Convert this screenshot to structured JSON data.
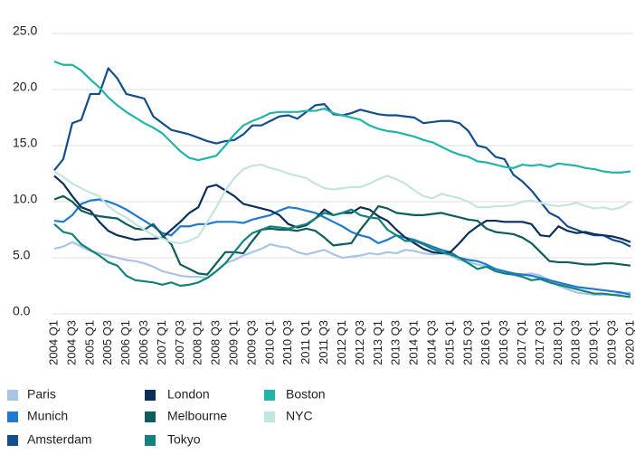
{
  "chart_data": {
    "type": "line",
    "categories": [
      "2004 Q1",
      null,
      "2004 Q3",
      null,
      "2005 Q1",
      null,
      "2005 Q3",
      null,
      "2006 Q1",
      null,
      "2006 Q3",
      null,
      "2007 Q1",
      null,
      "2007 Q3",
      null,
      "2008 Q1",
      null,
      "2008 Q3",
      null,
      "2009 Q1",
      null,
      "2009 Q3",
      null,
      "2010 Q1",
      null,
      "2010 Q3",
      null,
      "2011 Q1",
      null,
      "2011 Q3",
      null,
      "2012 Q1",
      null,
      "2012 Q3",
      null,
      "2013 Q1",
      null,
      "2013 Q3",
      null,
      "2014 Q1",
      null,
      "2014 Q3",
      null,
      "2015 Q1",
      null,
      "2015 Q3",
      null,
      "2016 Q1",
      null,
      "2016 Q3",
      null,
      "2017 Q1",
      null,
      "2017 Q3",
      null,
      "2018 Q1",
      null,
      "2018 Q3",
      null,
      "2019 Q1",
      null,
      "2019 Q3",
      null,
      "2020 Q1"
    ],
    "ylim": [
      0,
      25
    ],
    "yticks": [
      {
        "value": 0,
        "label": "0.0"
      },
      {
        "value": 5,
        "label": "5.0"
      },
      {
        "value": 10,
        "label": "10.0"
      },
      {
        "value": 15,
        "label": "15.0"
      },
      {
        "value": 20,
        "label": "20.0"
      },
      {
        "value": 25,
        "label": "25.0"
      }
    ],
    "grid": true,
    "legend": "bottom",
    "series": [
      {
        "name": "Paris",
        "color": "#a8c4e6",
        "values": [
          5.8,
          6.0,
          6.4,
          6.0,
          5.6,
          5.4,
          5.2,
          5.0,
          4.8,
          4.7,
          4.5,
          4.2,
          3.8,
          3.6,
          3.4,
          3.3,
          3.3,
          3.2,
          3.8,
          4.5,
          4.8,
          5.2,
          5.5,
          5.8,
          6.2,
          6.0,
          5.9,
          5.5,
          5.3,
          5.5,
          5.7,
          5.3,
          5.0,
          5.1,
          5.2,
          5.4,
          5.3,
          5.5,
          5.4,
          5.7,
          5.6,
          5.4,
          5.3,
          5.4,
          5.2,
          4.8,
          4.6,
          4.4,
          4.2,
          4.0,
          3.8,
          3.6,
          3.5,
          3.6,
          3.4,
          3.0,
          2.5,
          2.2,
          1.9,
          1.8,
          1.7,
          1.7,
          1.7,
          1.8,
          1.9
        ]
      },
      {
        "name": "Munich",
        "color": "#1f78d1",
        "values": [
          8.3,
          8.2,
          8.8,
          9.8,
          10.1,
          10.2,
          10.0,
          9.7,
          9.3,
          8.8,
          8.3,
          7.8,
          7.2,
          7.0,
          7.8,
          7.8,
          8.0,
          8.0,
          8.2,
          8.2,
          8.2,
          8.1,
          8.4,
          8.6,
          8.8,
          9.2,
          9.5,
          9.4,
          9.2,
          9.0,
          8.6,
          8.2,
          7.8,
          7.3,
          7.0,
          6.8,
          6.3,
          6.6,
          7.0,
          6.8,
          6.6,
          6.3,
          6.0,
          5.7,
          5.5,
          5.0,
          4.8,
          4.7,
          4.4,
          4.0,
          3.8,
          3.6,
          3.5,
          3.4,
          3.2,
          3.0,
          2.8,
          2.6,
          2.4,
          2.3,
          2.2,
          2.1,
          2.0,
          1.9,
          1.7
        ]
      },
      {
        "name": "Amsterdam",
        "color": "#134e8e",
        "values": [
          12.8,
          13.8,
          17.0,
          17.3,
          19.6,
          19.6,
          21.9,
          21.0,
          19.6,
          19.4,
          19.2,
          17.6,
          17.0,
          16.4,
          16.2,
          16.0,
          15.7,
          15.4,
          15.2,
          15.4,
          15.5,
          16.0,
          16.8,
          16.8,
          17.2,
          17.6,
          17.7,
          17.4,
          18.0,
          18.6,
          18.7,
          17.8,
          17.7,
          17.9,
          18.2,
          18.0,
          17.8,
          17.7,
          17.7,
          17.6,
          17.5,
          17.0,
          17.1,
          17.2,
          17.2,
          17.0,
          16.3,
          15.0,
          14.8,
          14.0,
          13.8,
          12.4,
          11.8,
          11.0,
          10.0,
          9.0,
          8.6,
          7.8,
          7.5,
          7.2,
          7.0,
          7.0,
          6.6,
          6.4,
          6.0
        ]
      },
      {
        "name": "London",
        "color": "#0b2f5b",
        "values": [
          12.3,
          11.6,
          10.5,
          9.5,
          9.2,
          8.2,
          7.4,
          7.0,
          6.8,
          6.6,
          6.7,
          6.7,
          6.8,
          7.5,
          8.2,
          9.0,
          9.5,
          11.3,
          11.5,
          11.0,
          10.5,
          9.8,
          9.6,
          9.4,
          9.2,
          8.8,
          8.0,
          7.7,
          7.9,
          8.5,
          9.3,
          8.8,
          9.0,
          9.0,
          9.5,
          9.3,
          8.7,
          8.3,
          7.5,
          6.8,
          6.3,
          5.8,
          5.5,
          5.4,
          5.5,
          6.3,
          7.2,
          7.8,
          8.3,
          8.3,
          8.2,
          8.2,
          8.2,
          8.0,
          7.0,
          6.9,
          7.8,
          7.4,
          7.2,
          7.3,
          7.1,
          7.0,
          6.9,
          6.7,
          6.4
        ]
      },
      {
        "name": "Melbourne",
        "color": "#0f5c5c",
        "values": [
          10.2,
          10.5,
          10.0,
          9.2,
          8.9,
          8.7,
          8.6,
          8.5,
          8.0,
          7.6,
          7.5,
          8.0,
          7.0,
          6.2,
          4.4,
          4.0,
          3.6,
          3.5,
          4.5,
          5.5,
          5.5,
          5.4,
          6.5,
          7.5,
          7.6,
          7.5,
          7.5,
          7.4,
          7.6,
          7.4,
          6.8,
          6.1,
          6.2,
          6.3,
          7.5,
          8.5,
          9.6,
          9.4,
          9.0,
          8.9,
          8.8,
          8.8,
          8.9,
          9.0,
          8.8,
          8.6,
          8.4,
          8.3,
          7.6,
          7.3,
          7.2,
          7.1,
          6.8,
          6.3,
          5.5,
          4.7,
          4.6,
          4.6,
          4.5,
          4.4,
          4.4,
          4.5,
          4.5,
          4.4,
          4.3
        ]
      },
      {
        "name": "Tokyo",
        "color": "#12837a",
        "values": [
          8.0,
          7.3,
          7.1,
          6.2,
          5.7,
          5.2,
          4.6,
          4.3,
          3.4,
          3.0,
          2.9,
          2.8,
          2.6,
          2.8,
          2.5,
          2.6,
          2.8,
          3.2,
          3.8,
          4.5,
          5.5,
          6.5,
          7.2,
          7.5,
          7.8,
          7.7,
          7.6,
          7.8,
          8.0,
          8.5,
          9.0,
          8.8,
          9.0,
          9.3,
          8.8,
          8.6,
          8.5,
          7.5,
          7.0,
          6.5,
          6.5,
          6.2,
          5.8,
          5.5,
          5.3,
          5.0,
          4.5,
          4.0,
          4.2,
          3.8,
          3.6,
          3.5,
          3.3,
          3.0,
          3.1,
          2.8,
          2.6,
          2.4,
          2.2,
          2.0,
          1.8,
          1.8,
          1.7,
          1.6,
          1.5
        ]
      },
      {
        "name": "Boston",
        "color": "#20b5a6",
        "values": [
          22.5,
          22.2,
          22.2,
          21.7,
          20.9,
          20.2,
          19.3,
          18.6,
          18.0,
          17.5,
          17.0,
          16.6,
          16.1,
          15.3,
          14.5,
          13.9,
          13.7,
          13.9,
          14.1,
          15.0,
          16.0,
          16.8,
          17.2,
          17.5,
          17.9,
          18.0,
          18.0,
          18.0,
          18.1,
          18.1,
          18.3,
          17.9,
          17.7,
          17.5,
          17.3,
          16.8,
          16.5,
          16.3,
          16.2,
          16.0,
          15.8,
          15.5,
          15.3,
          14.9,
          14.5,
          14.2,
          14.0,
          13.6,
          13.5,
          13.3,
          13.1,
          13.0,
          13.3,
          13.2,
          13.3,
          13.1,
          13.4,
          13.3,
          13.2,
          13.0,
          12.9,
          12.7,
          12.6,
          12.6,
          12.7
        ]
      },
      {
        "name": "NYC",
        "color": "#c3e5e0",
        "values": [
          12.7,
          12.2,
          11.6,
          11.2,
          10.8,
          10.5,
          9.6,
          9.0,
          8.6,
          8.0,
          7.5,
          7.0,
          6.7,
          6.4,
          6.3,
          6.5,
          6.9,
          8.2,
          9.5,
          11.0,
          12.1,
          12.9,
          13.2,
          13.3,
          13.0,
          12.8,
          12.5,
          12.3,
          12.1,
          11.6,
          11.2,
          11.1,
          11.2,
          11.3,
          11.3,
          11.6,
          12.0,
          12.3,
          12.0,
          11.6,
          11.0,
          10.5,
          10.3,
          10.7,
          10.5,
          10.3,
          10.0,
          9.5,
          9.5,
          9.6,
          9.6,
          9.7,
          10.0,
          10.1,
          9.9,
          9.7,
          9.6,
          9.7,
          9.9,
          9.6,
          9.4,
          9.5,
          9.3,
          9.5,
          10.0
        ]
      }
    ]
  }
}
